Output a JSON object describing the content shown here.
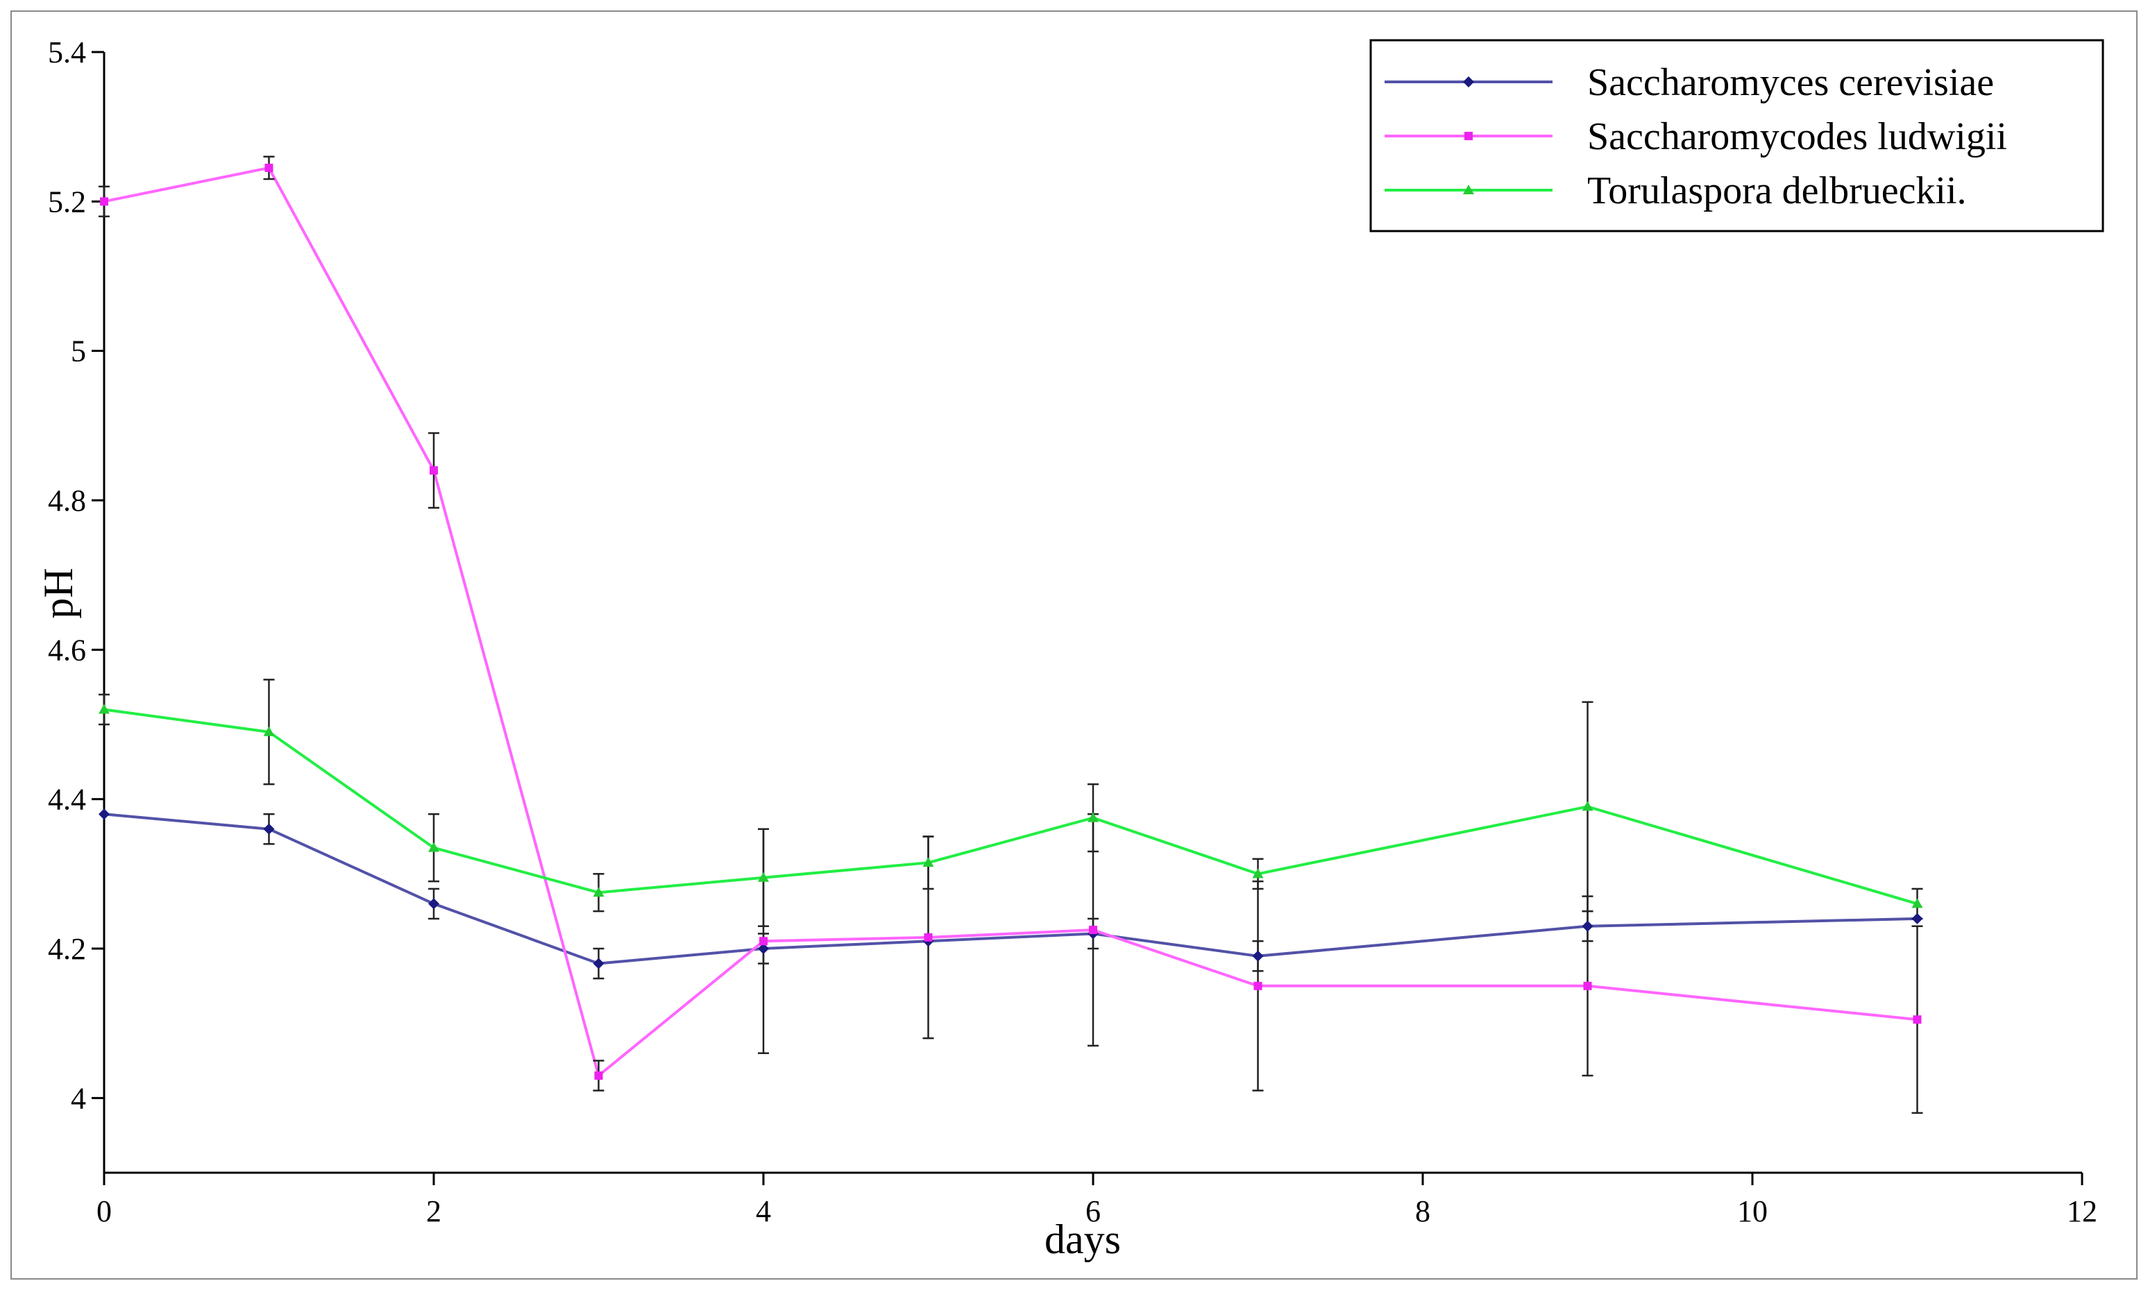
{
  "chart_data": {
    "type": "line",
    "xlabel": "days",
    "ylabel": "pH",
    "xlim": [
      0,
      12
    ],
    "ylim": [
      3.9,
      5.4
    ],
    "xticks": [
      "0",
      "2",
      "4",
      "6",
      "8",
      "10",
      "12"
    ],
    "yticks": [
      "4",
      "4.2",
      "4.4",
      "4.6",
      "4.8",
      "5",
      "5.2",
      "5.4"
    ],
    "grid": false,
    "legend_position": "top-right",
    "series": [
      {
        "name": "Saccharomyces cerevisiae",
        "color": "#5252a8",
        "marker_color": "#1a1a80",
        "marker": "diamond",
        "x": [
          0,
          1,
          2,
          3,
          4,
          5,
          6,
          7,
          9,
          11
        ],
        "y": [
          4.38,
          4.36,
          4.26,
          4.18,
          4.2,
          4.21,
          4.22,
          4.19,
          4.23,
          4.24
        ],
        "err": [
          0.0,
          0.02,
          0.02,
          0.02,
          0.02,
          0.0,
          0.02,
          0.02,
          0.02,
          0.0
        ]
      },
      {
        "name": "Saccharomycodes ludwigii",
        "color": "#ff66ff",
        "marker_color": "#ee22ee",
        "marker": "square",
        "x": [
          0,
          1,
          2,
          3,
          4,
          5,
          6,
          7,
          9,
          11
        ],
        "y": [
          5.2,
          5.245,
          4.84,
          4.03,
          4.21,
          4.215,
          4.225,
          4.15,
          4.15,
          4.105
        ],
        "err": [
          0.02,
          0.015,
          0.05,
          0.02,
          0.15,
          0.135,
          0.155,
          0.14,
          0.12,
          0.125
        ]
      },
      {
        "name": "Torulaspora delbrueckii.",
        "color": "#22ee44",
        "marker_color": "#22cc33",
        "marker": "triangle",
        "x": [
          0,
          1,
          2,
          3,
          4,
          5,
          6,
          7,
          9,
          11
        ],
        "y": [
          4.52,
          4.49,
          4.335,
          4.275,
          4.295,
          4.315,
          4.375,
          4.3,
          4.39,
          4.26
        ],
        "err": [
          0.02,
          0.07,
          0.045,
          0.025,
          0.065,
          0.035,
          0.045,
          0.02,
          0.14,
          0.02
        ]
      }
    ]
  }
}
